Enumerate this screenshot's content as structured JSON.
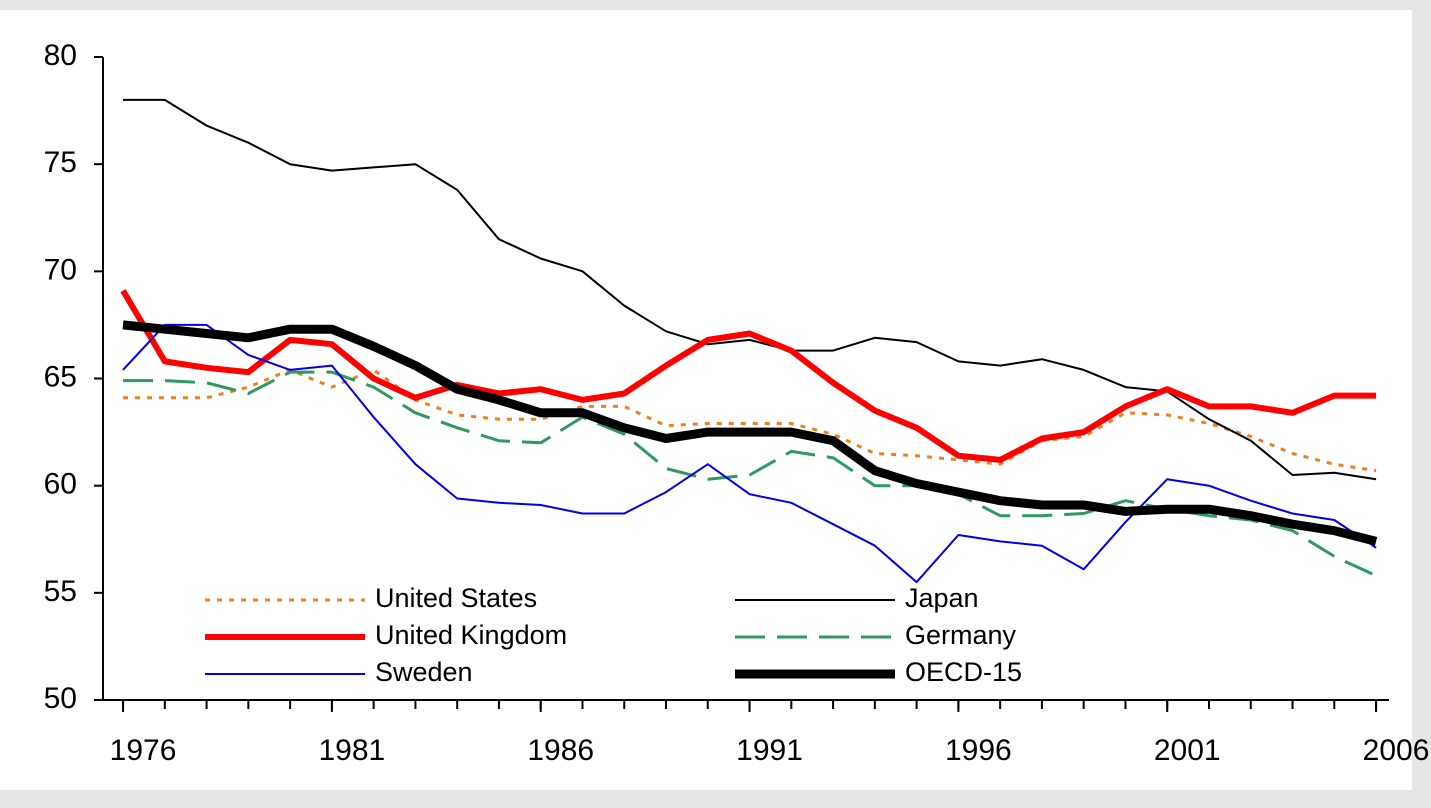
{
  "chart_data": {
    "type": "line",
    "x": [
      1976,
      1977,
      1978,
      1979,
      1980,
      1981,
      1982,
      1983,
      1984,
      1985,
      1986,
      1987,
      1988,
      1989,
      1990,
      1991,
      1992,
      1993,
      1994,
      1995,
      1996,
      1997,
      1998,
      1999,
      2000,
      2001,
      2002,
      2003,
      2004,
      2005,
      2006
    ],
    "series": [
      {
        "name": "United States",
        "color": "#f07f22",
        "style": "dotted",
        "width": 3,
        "values": [
          64.1,
          64.1,
          64.1,
          64.6,
          65.4,
          64.6,
          65.4,
          64.0,
          63.3,
          63.1,
          63.1,
          63.7,
          63.7,
          62.8,
          62.9,
          62.9,
          62.9,
          62.4,
          61.5,
          61.4,
          61.2,
          61.0,
          62.1,
          62.3,
          63.4,
          63.3,
          62.9,
          62.3,
          61.5,
          61.0,
          60.7
        ]
      },
      {
        "name": "Japan",
        "color": "#000000",
        "style": "solid",
        "width": 2,
        "values": [
          78,
          78,
          76.8,
          76,
          75,
          74.7,
          74.85,
          75,
          73.8,
          71.5,
          70.6,
          70,
          68.4,
          67.2,
          66.6,
          66.8,
          66.3,
          66.3,
          66.9,
          66.7,
          65.8,
          65.6,
          65.9,
          65.4,
          64.6,
          64.4,
          63.1,
          62.1,
          60.5,
          60.6,
          60.3
        ]
      },
      {
        "name": "United Kingdom",
        "color": "#ff0000",
        "style": "solid",
        "width": 6,
        "values": [
          69.1,
          65.8,
          65.5,
          65.3,
          66.8,
          66.6,
          65,
          64.1,
          64.7,
          64.3,
          64.5,
          64.0,
          64.3,
          65.6,
          66.8,
          67.1,
          66.3,
          64.8,
          63.5,
          62.7,
          61.4,
          61.2,
          62.2,
          62.5,
          63.7,
          64.5,
          63.7,
          63.7,
          63.4,
          64.2,
          64.2
        ]
      },
      {
        "name": "Germany",
        "color": "#2e9960",
        "style": "dashed",
        "width": 3,
        "values": [
          64.9,
          64.9,
          64.8,
          64.3,
          65.3,
          65.3,
          64.6,
          63.4,
          62.7,
          62.1,
          62.0,
          63.2,
          62.4,
          60.8,
          60.3,
          60.5,
          61.6,
          61.3,
          60.0,
          60.0,
          59.6,
          58.6,
          58.6,
          58.7,
          59.3,
          58.9,
          58.6,
          58.4,
          57.9,
          56.7,
          55.8
        ]
      },
      {
        "name": "Sweden",
        "color": "#0000ee",
        "style": "solid",
        "width": 2,
        "values": [
          65.4,
          67.5,
          67.5,
          66.1,
          65.4,
          65.6,
          63.2,
          61.0,
          59.4,
          59.2,
          59.1,
          58.7,
          58.7,
          59.7,
          61.0,
          59.6,
          59.2,
          58.2,
          57.2,
          55.5,
          57.7,
          57.4,
          57.2,
          56.1,
          58.3,
          60.3,
          60.0,
          59.3,
          58.7,
          58.4,
          57.1
        ]
      },
      {
        "name": "OECD-15",
        "color": "#000000",
        "style": "solid",
        "width": 9,
        "values": [
          67.5,
          67.3,
          67.1,
          66.9,
          67.3,
          67.3,
          66.5,
          65.6,
          64.5,
          64.0,
          63.4,
          63.4,
          62.7,
          62.2,
          62.5,
          62.5,
          62.5,
          62.1,
          60.7,
          60.1,
          59.7,
          59.3,
          59.1,
          59.1,
          58.8,
          58.9,
          58.9,
          58.6,
          58.2,
          57.9,
          57.4
        ]
      }
    ],
    "xlim": [
      1975.52,
      2006.31
    ],
    "xticks": [
      1976,
      1981,
      1986,
      1991,
      1996,
      2001,
      2006
    ],
    "ylim": [
      50,
      80
    ],
    "yticks": [
      50,
      55,
      60,
      65,
      70,
      75,
      80
    ],
    "grid": false,
    "legend": "lower left"
  }
}
